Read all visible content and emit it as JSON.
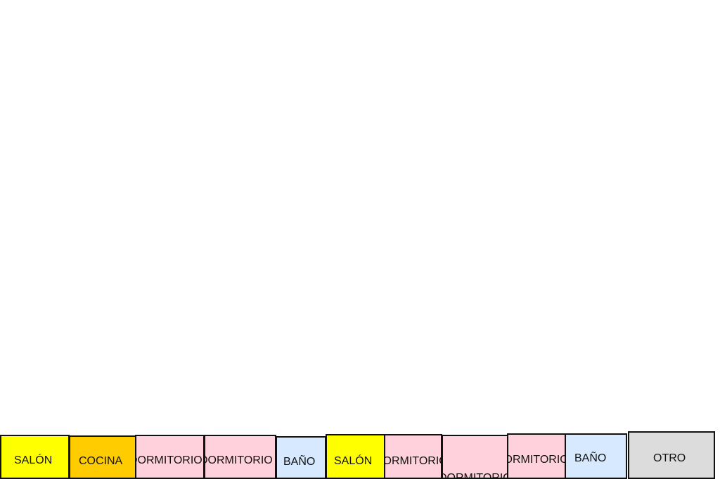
{
  "palette": {
    "salon": "#ffff00",
    "cocina": "#ffcc00",
    "dormitorio": "#ffd1dc",
    "bano": "#d6e9ff",
    "otro": "#dcdcdc",
    "border": "#111111"
  },
  "rooms": [
    {
      "label": "SALÓN",
      "type": "salon"
    },
    {
      "label": "COCINA",
      "type": "cocina"
    },
    {
      "label": "DORMITORIO",
      "type": "dormitorio"
    },
    {
      "label": "DORMITORIO",
      "type": "dormitorio"
    },
    {
      "label": "BAÑO",
      "type": "bano"
    },
    {
      "label": "SALÓN",
      "type": "salon"
    },
    {
      "label": "DORMITORIO",
      "type": "dormitorio"
    },
    {
      "label": "DORMITORIO",
      "type": "dormitorio"
    },
    {
      "label": "DORMITORIO",
      "type": "dormitorio"
    },
    {
      "label": "BAÑO",
      "type": "bano"
    },
    {
      "label": "OTRO",
      "type": "otro"
    }
  ]
}
